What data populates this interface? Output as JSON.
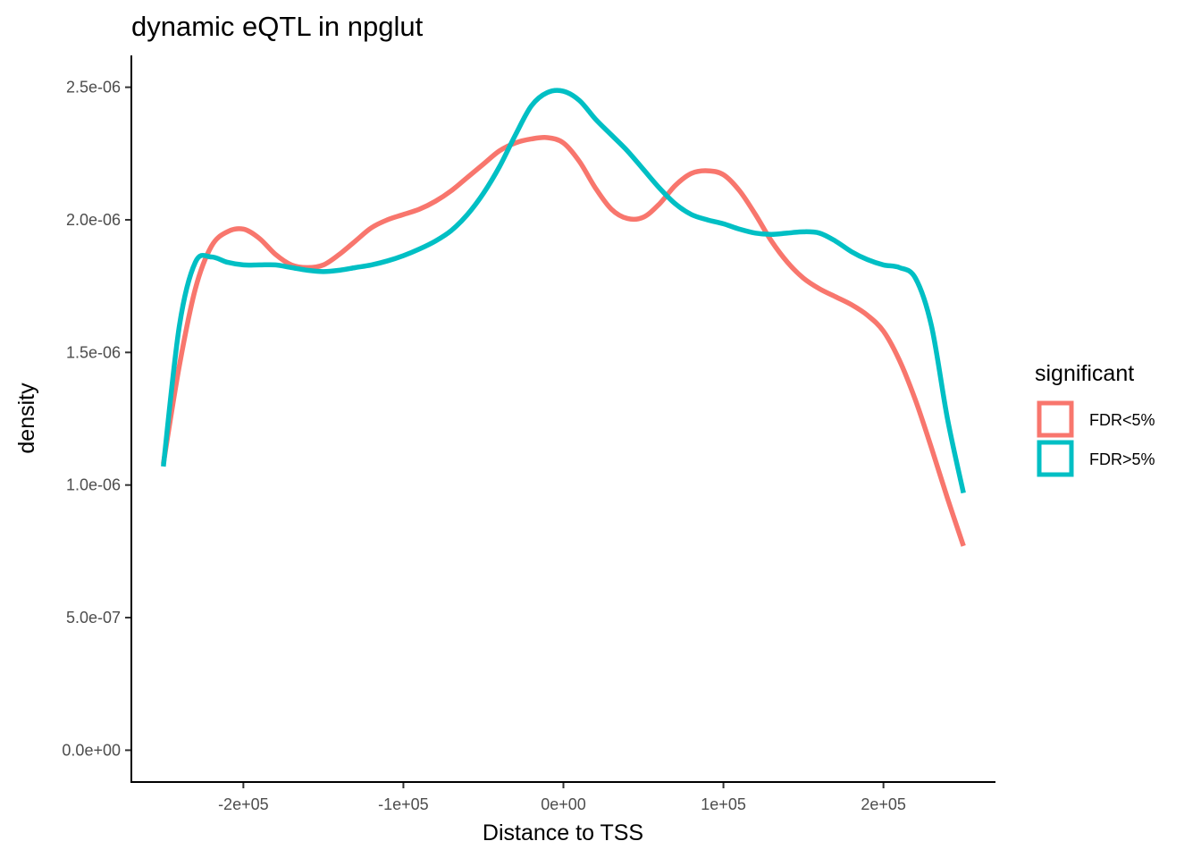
{
  "chart_data": {
    "type": "line",
    "title": "dynamic eQTL in npglut",
    "xlabel": "Distance to TSS",
    "ylabel": "density",
    "xlim": [
      -270000,
      270000
    ],
    "ylim": [
      -1.2e-07,
      2.62e-06
    ],
    "x_ticks": [
      -200000,
      -100000,
      0,
      100000,
      200000
    ],
    "x_tick_labels": [
      "-2e+05",
      "-1e+05",
      "0e+00",
      "1e+05",
      "2e+05"
    ],
    "y_ticks": [
      0,
      5e-07,
      1e-06,
      1.5e-06,
      2e-06,
      2.5e-06
    ],
    "y_tick_labels": [
      "0.0e+00",
      "5.0e-07",
      "1.0e-06",
      "1.5e-06",
      "2.0e-06",
      "2.5e-06"
    ],
    "grid": false,
    "legend": {
      "title": "significant",
      "position": "right"
    },
    "series": [
      {
        "name": "FDR<5%",
        "color": "#F8766D",
        "x": [
          -250000,
          -240000,
          -230000,
          -220000,
          -210000,
          -200000,
          -190000,
          -180000,
          -170000,
          -160000,
          -150000,
          -140000,
          -130000,
          -120000,
          -110000,
          -100000,
          -90000,
          -80000,
          -70000,
          -60000,
          -50000,
          -40000,
          -30000,
          -20000,
          -10000,
          0,
          10000,
          20000,
          30000,
          40000,
          50000,
          60000,
          70000,
          80000,
          90000,
          100000,
          110000,
          120000,
          130000,
          140000,
          150000,
          160000,
          170000,
          180000,
          190000,
          200000,
          210000,
          220000,
          230000,
          240000,
          250000
        ],
        "y": [
          1.08e-06,
          1.45e-06,
          1.74e-06,
          1.9e-06,
          1.955e-06,
          1.965e-06,
          1.93e-06,
          1.87e-06,
          1.83e-06,
          1.82e-06,
          1.83e-06,
          1.87e-06,
          1.92e-06,
          1.97e-06,
          2e-06,
          2.02e-06,
          2.04e-06,
          2.07e-06,
          2.11e-06,
          2.16e-06,
          2.21e-06,
          2.26e-06,
          2.29e-06,
          2.305e-06,
          2.31e-06,
          2.29e-06,
          2.22e-06,
          2.12e-06,
          2.04e-06,
          2.005e-06,
          2.01e-06,
          2.06e-06,
          2.13e-06,
          2.175e-06,
          2.185e-06,
          2.17e-06,
          2.11e-06,
          2.02e-06,
          1.92e-06,
          1.84e-06,
          1.78e-06,
          1.74e-06,
          1.71e-06,
          1.68e-06,
          1.64e-06,
          1.58e-06,
          1.47e-06,
          1.32e-06,
          1.14e-06,
          9.5e-07,
          7.7e-07
        ]
      },
      {
        "name": "FDR>5%",
        "color": "#00BFC4",
        "x": [
          -250000,
          -240000,
          -230000,
          -220000,
          -210000,
          -200000,
          -190000,
          -180000,
          -170000,
          -160000,
          -150000,
          -140000,
          -130000,
          -120000,
          -110000,
          -100000,
          -90000,
          -80000,
          -70000,
          -60000,
          -50000,
          -40000,
          -30000,
          -20000,
          -10000,
          0,
          10000,
          20000,
          30000,
          40000,
          50000,
          60000,
          70000,
          80000,
          90000,
          100000,
          110000,
          120000,
          130000,
          140000,
          150000,
          160000,
          170000,
          180000,
          190000,
          200000,
          210000,
          220000,
          230000,
          240000,
          250000
        ],
        "y": [
          1.07e-06,
          1.6e-06,
          1.84e-06,
          1.86e-06,
          1.84e-06,
          1.83e-06,
          1.83e-06,
          1.83e-06,
          1.82e-06,
          1.81e-06,
          1.805e-06,
          1.81e-06,
          1.82e-06,
          1.83e-06,
          1.845e-06,
          1.865e-06,
          1.89e-06,
          1.92e-06,
          1.96e-06,
          2.02e-06,
          2.1e-06,
          2.2e-06,
          2.32e-06,
          2.43e-06,
          2.48e-06,
          2.485e-06,
          2.45e-06,
          2.38e-06,
          2.32e-06,
          2.26e-06,
          2.19e-06,
          2.12e-06,
          2.06e-06,
          2.02e-06,
          2e-06,
          1.985e-06,
          1.965e-06,
          1.95e-06,
          1.945e-06,
          1.95e-06,
          1.955e-06,
          1.95e-06,
          1.92e-06,
          1.88e-06,
          1.85e-06,
          1.83e-06,
          1.82e-06,
          1.78e-06,
          1.6e-06,
          1.25e-06,
          9.7e-07
        ]
      }
    ]
  }
}
